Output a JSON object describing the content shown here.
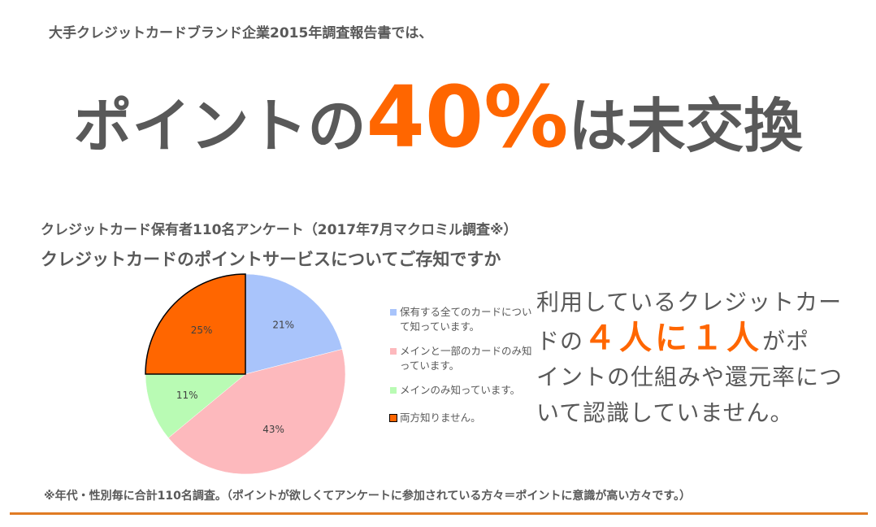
{
  "report_intro": "大手クレジットカードブランド企業2015年調査報告書では、",
  "headline": {
    "pre": "ポイントの",
    "highlight": "40%",
    "post": "は未交換"
  },
  "survey": {
    "title": "クレジットカード保有者110名アンケート（2017年7月マクロミル調査※）",
    "question": "クレジットカードのポイントサービスについてご存知ですか"
  },
  "chart_data": {
    "type": "pie",
    "title": "",
    "slices": [
      {
        "label": "保有する全てのカードについて知っています。",
        "value": 21,
        "display": "21%",
        "color": "#a9c4fb"
      },
      {
        "label": "メインと一部のカードのみ知っています。",
        "value": 43,
        "display": "43%",
        "color": "#fdb9bd"
      },
      {
        "label": "メインのみ知っています。",
        "value": 11,
        "display": "11%",
        "color": "#b9fbb4"
      },
      {
        "label": "両方知りません。",
        "value": 25,
        "display": "25%",
        "color": "#ff6600"
      }
    ],
    "legend_position": "right"
  },
  "callout": {
    "line_a": "利用しているクレジットカー",
    "line_b": "ドの",
    "emph": "４人に１人",
    "line_c": "がポ",
    "line_d": "イントの仕組みや還元率につ",
    "line_e": "いて認識していません。"
  },
  "footnote": "※年代・性別毎に合計110名調査。（ポイントが欲しくてアンケートに参加されている方々＝ポイントに意識が高い方々です。）",
  "colors": {
    "accent": "#ff6600",
    "text": "#595959",
    "divider": "#e07b24"
  }
}
